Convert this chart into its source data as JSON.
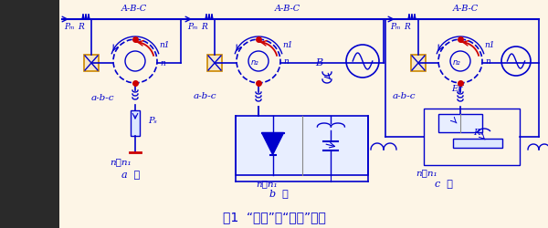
{
  "bg_color": "#fdf5e6",
  "line_color": "#0000cc",
  "red_color": "#cc0000",
  "orange_color": "#cc8800",
  "title": "图1  “单馈”与“双馈”电机",
  "title_fontsize": 10,
  "label_a": "a  ）",
  "label_b": "b  ）",
  "label_c": "c  ）",
  "sub_a_n": "n＜n₁",
  "sub_b_n": "n＜n₁",
  "sub_c_n": "n＞n₁",
  "abc_upper": "A-B-C",
  "abc_lower_a": "a-b-c",
  "abc_lower_b": "a-b-c",
  "abc_lower_c": "a-b-c"
}
